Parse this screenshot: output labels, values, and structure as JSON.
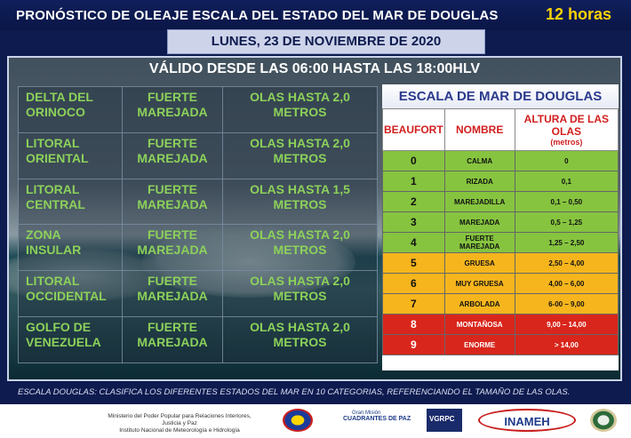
{
  "header": {
    "title": "PRONÓSTICO DE OLEAJE ESCALA DEL ESTADO DEL MAR DE DOUGLAS",
    "hours": "12 horas",
    "date": "LUNES, 23 DE  NOVIEMBRE DE 2020"
  },
  "validity": "VÁLIDO DESDE LAS 06:00  HASTA LAS 18:00HLV",
  "forecast": [
    {
      "zone": "DELTA DEL ORINOCO",
      "condition": "FUERTE MAREJADA",
      "waves": "OLAS HASTA 2,0 METROS"
    },
    {
      "zone": "LITORAL ORIENTAL",
      "condition": "FUERTE MAREJADA",
      "waves": "OLAS HASTA 2,0 METROS"
    },
    {
      "zone": "LITORAL CENTRAL",
      "condition": "FUERTE MAREJADA",
      "waves": "OLAS HASTA 1,5 METROS"
    },
    {
      "zone": "ZONA INSULAR",
      "condition": "FUERTE MAREJADA",
      "waves": "OLAS HASTA 2,0 METROS"
    },
    {
      "zone": "LITORAL OCCIDENTAL",
      "condition": "FUERTE MAREJADA",
      "waves": "OLAS HASTA 2,0 METROS"
    },
    {
      "zone": "GOLFO DE VENEZUELA",
      "condition": "FUERTE MAREJADA",
      "waves": "OLAS HASTA 2,0 METROS"
    }
  ],
  "scale": {
    "title": "ESCALA  DE MAR DE DOUGLAS",
    "headers": {
      "beaufort": "BEAUFORT",
      "name": "NOMBRE",
      "height": "ALTURA DE LAS OLAS",
      "unit": "(metros)"
    },
    "rows": [
      {
        "num": "0",
        "name": "CALMA",
        "height": "0",
        "color": "#86c43f"
      },
      {
        "num": "1",
        "name": "RIZADA",
        "height": "0,1",
        "color": "#86c43f"
      },
      {
        "num": "2",
        "name": "MAREJADILLA",
        "height": "0,1 – 0,50",
        "color": "#86c43f"
      },
      {
        "num": "3",
        "name": "MAREJADA",
        "height": "0,5 – 1,25",
        "color": "#86c43f"
      },
      {
        "num": "4",
        "name": "FUERTE MAREJADA",
        "height": "1,25 – 2,50",
        "color": "#86c43f"
      },
      {
        "num": "5",
        "name": "GRUESA",
        "height": "2,50 – 4,00",
        "color": "#f6b51d"
      },
      {
        "num": "6",
        "name": "MUY GRUESA",
        "height": "4,00 – 6,00",
        "color": "#f6b51d"
      },
      {
        "num": "7",
        "name": "ARBOLADA",
        "height": "6-00 – 9,00",
        "color": "#f6b51d"
      },
      {
        "num": "8",
        "name": "MONTAÑOSA",
        "height": "9,00 – 14,00",
        "color": "#d9261c"
      },
      {
        "num": "9",
        "name": "ENORME",
        "height": "> 14,00",
        "color": "#d9261c"
      }
    ]
  },
  "footnote": "ESCALA DOUGLAS:  CLASIFICA LOS DIFERENTES ESTADOS DEL MAR EN 10 CATEGORIAS, REFERENCIANDO  EL TAMAÑO DE LAS OLAS.",
  "footer": {
    "ministry_line1": "Ministerio del Poder Popular para Relaciones Interiores, Justicia y Paz",
    "ministry_line2": "Instituto  Nacional de Meteorología e Hidrología",
    "logo_cuadrantes_small": "Gran Misión",
    "logo_cuadrantes": "CUADRANTES DE PAZ",
    "logo_vgrpc": "VGRPC",
    "logo_inameh": "INAMEH"
  }
}
